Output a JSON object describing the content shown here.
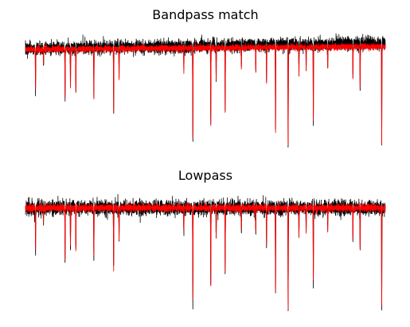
{
  "figure": {
    "background": "#ffffff",
    "raw_color": "#000000",
    "filtered_color": "#ff0000"
  },
  "chart_data": [
    {
      "type": "line",
      "title": "Bandpass match",
      "axes_visible": false,
      "grid": false,
      "xlabel": "",
      "ylabel": "",
      "n_samples": 6000,
      "baseline_raw": [
        0.0,
        0.22
      ],
      "baseline_filtered": [
        -0.04,
        0.08
      ],
      "noise_raw": 0.12,
      "noise_filtered": 0.06,
      "ylim": [
        -4.3,
        0.75
      ],
      "series": [
        {
          "name": "",
          "role": "raw",
          "color": "#000000"
        },
        {
          "name": "",
          "role": "filtered",
          "color": "#ff0000"
        }
      ],
      "events": [
        {
          "x": 0.028,
          "depth": -1.75
        },
        {
          "x": 0.05,
          "depth": -0.6
        },
        {
          "x": 0.11,
          "depth": -2.2
        },
        {
          "x": 0.125,
          "depth": -1.6
        },
        {
          "x": 0.14,
          "depth": -1.8
        },
        {
          "x": 0.19,
          "depth": -2.1
        },
        {
          "x": 0.245,
          "depth": -2.6
        },
        {
          "x": 0.26,
          "depth": -1.3
        },
        {
          "x": 0.44,
          "depth": -1.0
        },
        {
          "x": 0.465,
          "depth": -3.9
        },
        {
          "x": 0.515,
          "depth": -3.3,
          "raw_spike_up": 0.6
        },
        {
          "x": 0.53,
          "depth": -1.3
        },
        {
          "x": 0.555,
          "depth": -2.7
        },
        {
          "x": 0.6,
          "depth": -0.9
        },
        {
          "x": 0.64,
          "depth": -1.0
        },
        {
          "x": 0.67,
          "depth": -1.5
        },
        {
          "x": 0.695,
          "depth": -3.6
        },
        {
          "x": 0.73,
          "depth": -4.2
        },
        {
          "x": 0.76,
          "depth": -1.2
        },
        {
          "x": 0.78,
          "depth": -1.0
        },
        {
          "x": 0.8,
          "depth": -3.1
        },
        {
          "x": 0.84,
          "depth": -0.9
        },
        {
          "x": 0.91,
          "depth": -1.3
        },
        {
          "x": 0.93,
          "depth": -1.8
        },
        {
          "x": 0.99,
          "depth": -4.1
        }
      ]
    },
    {
      "type": "line",
      "title": "Lowpass",
      "axes_visible": false,
      "grid": false,
      "xlabel": "",
      "ylabel": "",
      "n_samples": 6000,
      "baseline_raw": [
        0.05,
        0.05
      ],
      "baseline_filtered": [
        0.05,
        0.05
      ],
      "noise_raw": 0.14,
      "noise_filtered": 0.07,
      "ylim": [
        -4.3,
        0.75
      ],
      "series": [
        {
          "name": "",
          "role": "raw",
          "color": "#000000"
        },
        {
          "name": "",
          "role": "filtered",
          "color": "#ff0000"
        }
      ],
      "events": [
        {
          "x": 0.028,
          "depth": -1.75
        },
        {
          "x": 0.05,
          "depth": -0.6
        },
        {
          "x": 0.11,
          "depth": -2.2
        },
        {
          "x": 0.125,
          "depth": -1.6
        },
        {
          "x": 0.14,
          "depth": -1.8
        },
        {
          "x": 0.19,
          "depth": -2.1
        },
        {
          "x": 0.245,
          "depth": -2.6
        },
        {
          "x": 0.26,
          "depth": -1.3
        },
        {
          "x": 0.44,
          "depth": -1.0
        },
        {
          "x": 0.465,
          "depth": -3.9
        },
        {
          "x": 0.515,
          "depth": -3.3,
          "raw_spike_up": 0.6
        },
        {
          "x": 0.53,
          "depth": -1.3
        },
        {
          "x": 0.555,
          "depth": -2.7
        },
        {
          "x": 0.6,
          "depth": -0.9
        },
        {
          "x": 0.64,
          "depth": -1.0
        },
        {
          "x": 0.67,
          "depth": -1.5
        },
        {
          "x": 0.695,
          "depth": -3.6
        },
        {
          "x": 0.73,
          "depth": -4.2
        },
        {
          "x": 0.76,
          "depth": -1.2
        },
        {
          "x": 0.78,
          "depth": -1.0
        },
        {
          "x": 0.8,
          "depth": -3.1
        },
        {
          "x": 0.84,
          "depth": -0.9
        },
        {
          "x": 0.91,
          "depth": -1.3
        },
        {
          "x": 0.93,
          "depth": -1.8
        },
        {
          "x": 0.99,
          "depth": -4.1
        }
      ]
    }
  ]
}
